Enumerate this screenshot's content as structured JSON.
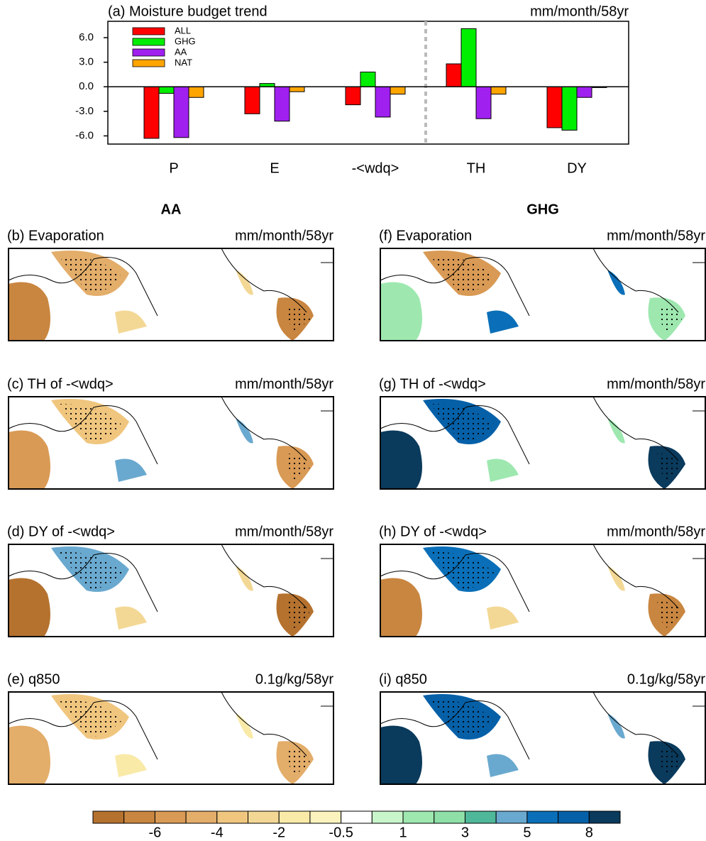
{
  "chart_data": {
    "type": "bar",
    "title": "(a) Moisture budget trend",
    "units": "mm/month/58yr",
    "categories": [
      "P",
      "E",
      "-<wdq>",
      "TH",
      "DY"
    ],
    "series": [
      {
        "name": "ALL",
        "color": "#ff0000",
        "values": [
          -6.3,
          -3.3,
          -2.2,
          2.8,
          -5.0
        ]
      },
      {
        "name": "GHG",
        "color": "#00ee00",
        "values": [
          -0.8,
          0.4,
          1.8,
          7.1,
          -5.3
        ]
      },
      {
        "name": "AA",
        "color": "#a020f0",
        "values": [
          -6.2,
          -4.2,
          -3.7,
          -3.9,
          -1.3
        ]
      },
      {
        "name": "NAT",
        "color": "#ffa500",
        "values": [
          -1.3,
          -0.6,
          -0.9,
          -0.9,
          -0.1
        ]
      }
    ],
    "ylim": [
      -7,
      8
    ],
    "yticks": [
      {
        "value": 6,
        "label": "6.0"
      },
      {
        "value": 3,
        "label": "3.0"
      },
      {
        "value": 0,
        "label": "0.0"
      },
      {
        "value": -3,
        "label": "-3.0"
      },
      {
        "value": -6,
        "label": "-6.0"
      }
    ],
    "legend": "upper left"
  },
  "column_headers": [
    "AA",
    "GHG"
  ],
  "panels": [
    {
      "title": "(b) Evaporation",
      "units": "mm/month/58yr"
    },
    {
      "title": "(c) TH of -<wdq>",
      "units": "mm/month/58yr"
    },
    {
      "title": "(d) DY of -<wdq>",
      "units": "mm/month/58yr"
    },
    {
      "title": "(e) q850",
      "units": "0.1g/kg/58yr"
    },
    {
      "title": "(f) Evaporation",
      "units": "mm/month/58yr"
    },
    {
      "title": "(g) TH of -<wdq>",
      "units": "mm/month/58yr"
    },
    {
      "title": "(h) DY of -<wdq>",
      "units": "mm/month/58yr"
    },
    {
      "title": "(i) q850",
      "units": "0.1g/kg/58yr"
    }
  ],
  "colorbar": {
    "colors": [
      "#b5722f",
      "#c98640",
      "#d99a55",
      "#e3ad6a",
      "#f0c67f",
      "#f3d895",
      "#f9eaa8",
      "#fbf3be",
      "#ffffff",
      "#c9f5cb",
      "#9ee8b0",
      "#8ee0a8",
      "#4fb89a",
      "#6aa9cf",
      "#0a6fb8",
      "#0560a8",
      "#0a3a5c"
    ],
    "labels": [
      "-6",
      "-4",
      "-2",
      "-0.5",
      "1",
      "3",
      "5",
      "8"
    ]
  }
}
